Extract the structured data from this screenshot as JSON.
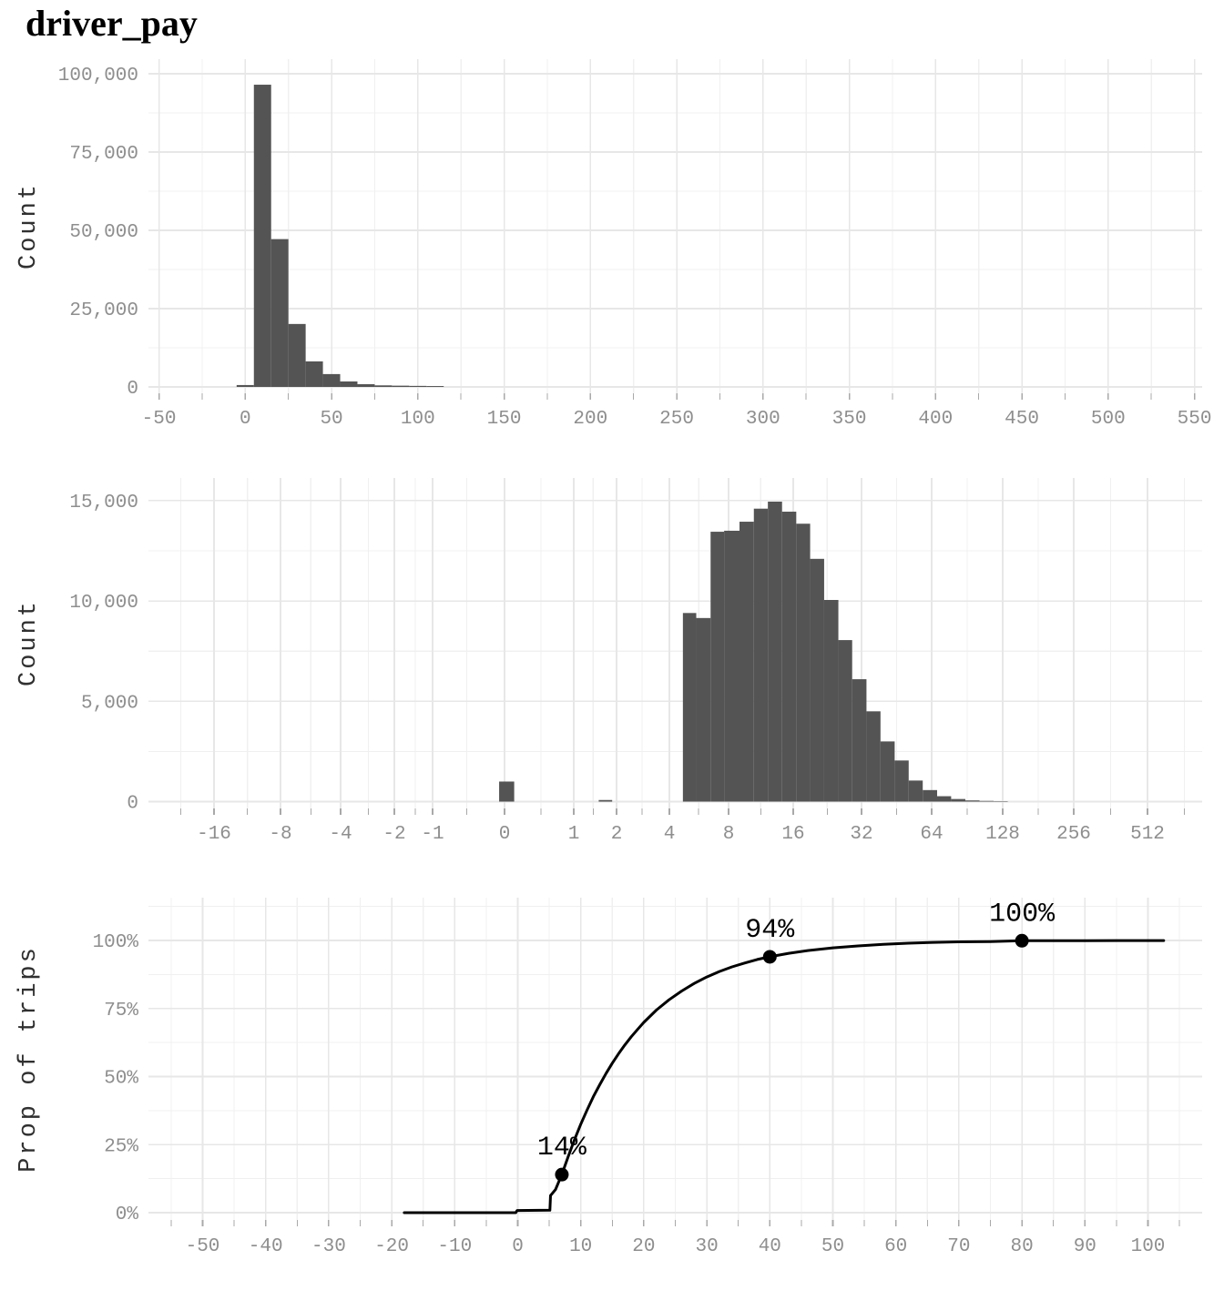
{
  "page": {
    "title": "driver_pay"
  },
  "colors": {
    "background": "#ffffff",
    "bar": "#545454",
    "grid_major": "#e7e7e7",
    "grid_minor": "#f0f0f0",
    "tick_mark": "#a9a9a9",
    "tick_label": "#8e8e8e",
    "axis_title": "#303030",
    "ecdf_line": "#000000",
    "annotation": "#000000",
    "title": "#000000"
  },
  "chart_data": [
    {
      "type": "bar",
      "name": "histogram_linear",
      "title": "driver_pay",
      "xlabel": "",
      "ylabel": "Count",
      "grid": true,
      "xlim": [
        -56,
        554
      ],
      "ylim": [
        0,
        104500
      ],
      "xticks": [
        {
          "v": -50,
          "label": "-50"
        },
        {
          "v": 0,
          "label": "0"
        },
        {
          "v": 50,
          "label": "50"
        },
        {
          "v": 100,
          "label": "100"
        },
        {
          "v": 150,
          "label": "150"
        },
        {
          "v": 200,
          "label": "200"
        },
        {
          "v": 250,
          "label": "250"
        },
        {
          "v": 300,
          "label": "300"
        },
        {
          "v": 350,
          "label": "350"
        },
        {
          "v": 400,
          "label": "400"
        },
        {
          "v": 450,
          "label": "450"
        },
        {
          "v": 500,
          "label": "500"
        },
        {
          "v": 550,
          "label": "550"
        }
      ],
      "xminor": [
        -25,
        25,
        75,
        125,
        175,
        225,
        275,
        325,
        375,
        425,
        475,
        525
      ],
      "yticks": [
        {
          "v": 0,
          "label": "0"
        },
        {
          "v": 25000,
          "label": "25,000"
        },
        {
          "v": 50000,
          "label": "50,000"
        },
        {
          "v": 75000,
          "label": "75,000"
        },
        {
          "v": 100000,
          "label": "100,000"
        }
      ],
      "yminor": [
        12500,
        37500,
        62500,
        87500
      ],
      "bins": [
        [
          -5,
          5,
          600
        ],
        [
          5,
          15,
          96500
        ],
        [
          15,
          25,
          47200
        ],
        [
          25,
          35,
          20100
        ],
        [
          35,
          45,
          8150
        ],
        [
          45,
          55,
          4100
        ],
        [
          55,
          65,
          1750
        ],
        [
          65,
          75,
          870
        ],
        [
          75,
          85,
          500
        ],
        [
          85,
          95,
          400
        ],
        [
          95,
          105,
          330
        ],
        [
          105,
          115,
          280
        ]
      ]
    },
    {
      "type": "bar",
      "name": "histogram_signed_log",
      "xlabel": "",
      "ylabel": "Count",
      "x_scale": "asinh-signed-log",
      "grid": true,
      "ylim": [
        0,
        16100
      ],
      "xticks": [
        {
          "v": -16,
          "label": "-16"
        },
        {
          "v": -8,
          "label": "-8"
        },
        {
          "v": -4,
          "label": "-4"
        },
        {
          "v": -2,
          "label": "-2"
        },
        {
          "v": -1,
          "label": "-1"
        },
        {
          "v": 0,
          "label": "0"
        },
        {
          "v": 1,
          "label": "1"
        },
        {
          "v": 2,
          "label": "2"
        },
        {
          "v": 4,
          "label": "4"
        },
        {
          "v": 8,
          "label": "8"
        },
        {
          "v": 16,
          "label": "16"
        },
        {
          "v": 32,
          "label": "32"
        },
        {
          "v": 64,
          "label": "64"
        },
        {
          "v": 128,
          "label": "128"
        },
        {
          "v": 256,
          "label": "256"
        },
        {
          "v": 512,
          "label": "512"
        }
      ],
      "xminor": [
        -22.6,
        -11.3,
        -5.66,
        -2.83,
        -1.41,
        -0.5,
        0.5,
        1.41,
        2.83,
        5.66,
        11.3,
        22.6,
        45.3,
        90.5,
        181,
        362,
        724
      ],
      "yticks": [
        {
          "v": 0,
          "label": "0"
        },
        {
          "v": 5000,
          "label": "5,000"
        },
        {
          "v": 10000,
          "label": "10,000"
        },
        {
          "v": 15000,
          "label": "15,000"
        }
      ],
      "yminor": [
        2500,
        7500,
        12500
      ],
      "bins": [
        [
          -0.07,
          0.13,
          1000
        ],
        [
          1.54,
          1.88,
          80
        ],
        [
          4.7,
          5.5,
          9400
        ],
        [
          5.5,
          6.5,
          9150
        ],
        [
          6.5,
          7.6,
          13450
        ],
        [
          7.6,
          9.0,
          13500
        ],
        [
          9.0,
          10.5,
          13950
        ],
        [
          10.5,
          12.2,
          14600
        ],
        [
          12.2,
          14.2,
          14950
        ],
        [
          14.2,
          16.5,
          14450
        ],
        [
          16.5,
          19.0,
          13850
        ],
        [
          19.0,
          21.9,
          12100
        ],
        [
          21.9,
          25.3,
          10050
        ],
        [
          25.3,
          29.1,
          8050
        ],
        [
          29.1,
          33.6,
          6100
        ],
        [
          33.6,
          38.6,
          4500
        ],
        [
          38.6,
          44.4,
          3000
        ],
        [
          44.4,
          51.0,
          2050
        ],
        [
          51.0,
          58.6,
          1050
        ],
        [
          58.6,
          67.5,
          575
        ],
        [
          67.5,
          77.4,
          270
        ],
        [
          77.4,
          88.9,
          130
        ],
        [
          88.9,
          102.1,
          60
        ],
        [
          102.1,
          117.2,
          35
        ],
        [
          117.2,
          134.5,
          20
        ]
      ]
    },
    {
      "type": "line",
      "name": "ecdf",
      "xlabel": "",
      "ylabel": "Prop of trips",
      "grid": true,
      "xlim": [
        -58.6,
        108.6
      ],
      "ylim": [
        0,
        118
      ],
      "xticks": [
        {
          "v": -50,
          "label": "-50"
        },
        {
          "v": -40,
          "label": "-40"
        },
        {
          "v": -30,
          "label": "-30"
        },
        {
          "v": -20,
          "label": "-20"
        },
        {
          "v": -10,
          "label": "-10"
        },
        {
          "v": 0,
          "label": "0"
        },
        {
          "v": 10,
          "label": "10"
        },
        {
          "v": 20,
          "label": "20"
        },
        {
          "v": 30,
          "label": "30"
        },
        {
          "v": 40,
          "label": "40"
        },
        {
          "v": 50,
          "label": "50"
        },
        {
          "v": 60,
          "label": "60"
        },
        {
          "v": 70,
          "label": "70"
        },
        {
          "v": 80,
          "label": "80"
        },
        {
          "v": 90,
          "label": "90"
        },
        {
          "v": 100,
          "label": "100"
        }
      ],
      "xminor": [
        -55,
        -45,
        -35,
        -25,
        -15,
        -5,
        5,
        15,
        25,
        35,
        45,
        55,
        65,
        75,
        85,
        95,
        105
      ],
      "yticks": [
        {
          "v": 0,
          "label": "0%"
        },
        {
          "v": 25,
          "label": "25%"
        },
        {
          "v": 50,
          "label": "50%"
        },
        {
          "v": 75,
          "label": "75%"
        },
        {
          "v": 100,
          "label": "100%"
        }
      ],
      "yminor": [
        12.5,
        37.5,
        62.5,
        87.5,
        112.5
      ],
      "line": [
        [
          -18,
          0
        ],
        [
          -0.3,
          0
        ],
        [
          -0.1,
          0.8
        ],
        [
          5.1,
          0.9
        ],
        [
          5.2,
          6.3
        ],
        [
          6,
          8.5
        ],
        [
          7,
          14
        ],
        [
          8,
          20.6
        ],
        [
          9,
          26.8
        ],
        [
          10,
          32.5
        ],
        [
          11,
          37.7
        ],
        [
          12,
          42.6
        ],
        [
          13,
          47
        ],
        [
          14,
          51.1
        ],
        [
          15,
          54.9
        ],
        [
          16,
          58.4
        ],
        [
          17,
          61.6
        ],
        [
          18,
          64.6
        ],
        [
          19,
          67.3
        ],
        [
          20,
          69.9
        ],
        [
          22,
          74.4
        ],
        [
          24,
          78.2
        ],
        [
          26,
          81.4
        ],
        [
          28,
          84.2
        ],
        [
          30,
          86.6
        ],
        [
          32,
          88.6
        ],
        [
          34,
          90.3
        ],
        [
          36,
          91.7
        ],
        [
          38,
          93
        ],
        [
          40,
          94
        ],
        [
          43,
          95.3
        ],
        [
          46,
          96.3
        ],
        [
          50,
          97.3
        ],
        [
          54,
          98
        ],
        [
          58,
          98.6
        ],
        [
          62,
          99
        ],
        [
          66,
          99.3
        ],
        [
          70,
          99.5
        ],
        [
          75,
          99.6
        ],
        [
          80,
          99.9
        ],
        [
          85,
          99.9
        ],
        [
          90,
          99.9
        ],
        [
          95,
          99.95
        ],
        [
          100,
          99.95
        ],
        [
          102.5,
          99.95
        ]
      ],
      "markers": [
        {
          "x": 7,
          "p": 14,
          "label": "14%"
        },
        {
          "x": 40,
          "p": 94,
          "label": "94%"
        },
        {
          "x": 80,
          "p": 99.9,
          "label": "100%"
        }
      ]
    }
  ]
}
